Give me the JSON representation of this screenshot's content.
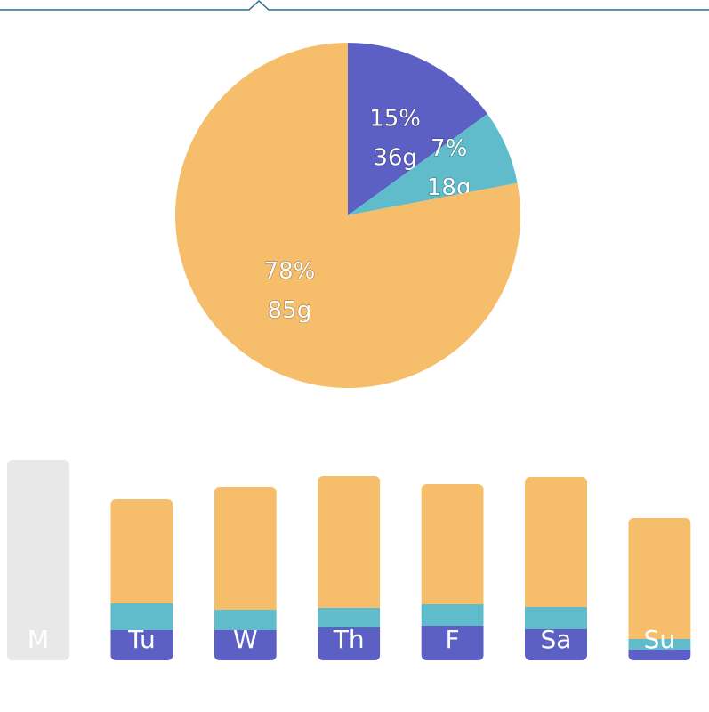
{
  "colors": {
    "protein": "#5c5fc4",
    "fat": "#60bccb",
    "carbs": "#f6be6b",
    "inactive": "#e8e8e8",
    "rule": "#2a6e97"
  },
  "chart_data": [
    {
      "type": "pie",
      "slices": [
        {
          "percent_label": "15%",
          "grams_label": "36g",
          "value": 15,
          "color": "#5c5fc4"
        },
        {
          "percent_label": "7%",
          "grams_label": "18g",
          "value": 7,
          "color": "#60bccb"
        },
        {
          "percent_label": "78%",
          "grams_label": "85g",
          "value": 78,
          "color": "#f6be6b"
        }
      ]
    },
    {
      "type": "bar",
      "stacked": true,
      "categories": [
        "M",
        "Tu",
        "W",
        "Th",
        "F",
        "Sa",
        "Su"
      ],
      "active": [
        false,
        true,
        true,
        true,
        true,
        true,
        true
      ],
      "series": [
        {
          "values": [
            0,
            34,
            34,
            37,
            39,
            35,
            12
          ],
          "color": "#5c5fc4"
        },
        {
          "values": [
            0,
            30,
            23,
            22,
            24,
            25,
            12
          ],
          "color": "#60bccb"
        },
        {
          "values": [
            0,
            117,
            138,
            148,
            135,
            146,
            136
          ],
          "color": "#f6be6b"
        }
      ],
      "inactive_values": [
        225,
        0,
        0,
        0,
        0,
        0,
        0
      ],
      "ylim": [
        0,
        225
      ]
    }
  ]
}
